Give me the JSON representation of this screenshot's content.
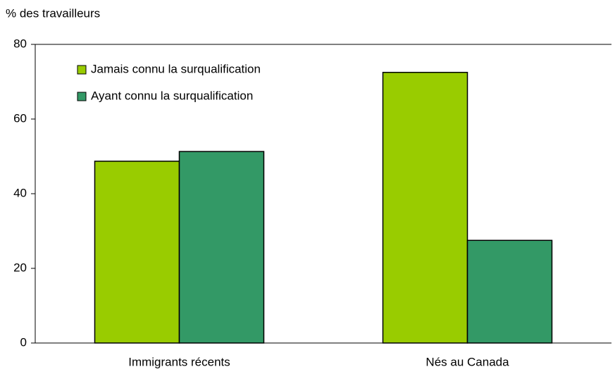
{
  "chart_data": {
    "type": "bar",
    "y_label": "% des travailleurs",
    "categories": [
      "Immigrants récents",
      "Nés au Canada"
    ],
    "series": [
      {
        "name": "Jamais connu la surqualification",
        "color": "#99cc00",
        "values": [
          48.7,
          72.5
        ]
      },
      {
        "name": "Ayant connu la surqualification",
        "color": "#339966",
        "values": [
          51.3,
          27.5
        ]
      }
    ],
    "ylim": [
      0,
      80
    ],
    "yticks": [
      0,
      20,
      40,
      60,
      80
    ],
    "grid": false,
    "legend": "upper left"
  }
}
